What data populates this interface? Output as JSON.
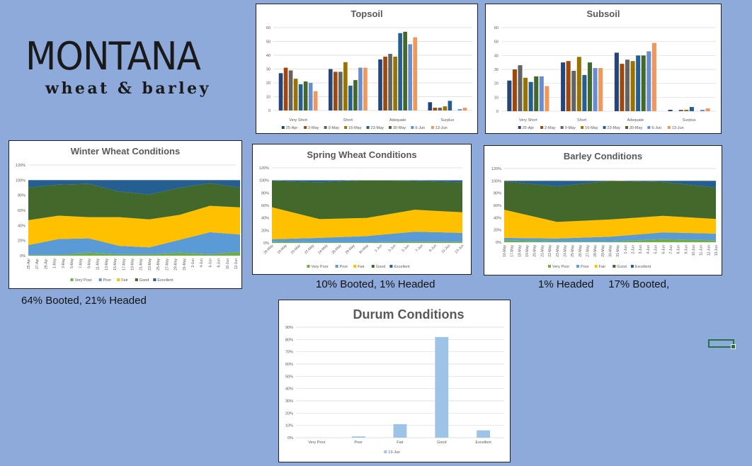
{
  "logo": {
    "main": "MONTANA",
    "sub": "wheat & barley"
  },
  "notes": {
    "winter_wheat": "64% Booted, 21% Headed",
    "spring_wheat": "10% Booted, 1% Headed",
    "barley": "1% Headed     17% Booted,"
  },
  "colors": {
    "background": "#8eaadb",
    "weeks": [
      "#264478",
      "#9e480e",
      "#636363",
      "#997300",
      "#255e91",
      "#43682b",
      "#698ed0",
      "#f1975a"
    ],
    "conditions": [
      "#70ad47",
      "#5b9bd5",
      "#ffc000",
      "#43682b",
      "#255e91"
    ],
    "durum": "#9dc3e6"
  },
  "chart_data": [
    {
      "id": "topsoil",
      "type": "bar",
      "title": "Topsoil",
      "categories": [
        "Very Short",
        "Short",
        "Adequate",
        "Surplus"
      ],
      "ylim": [
        0,
        60
      ],
      "y_ticks": [
        "0",
        "10",
        "20",
        "30",
        "40",
        "50",
        "60"
      ],
      "grid": true,
      "legend": "bottom",
      "series": [
        {
          "name": "25-Apr",
          "values": [
            27,
            30,
            37,
            6
          ]
        },
        {
          "name": "2-May",
          "values": [
            31,
            28,
            39,
            2
          ]
        },
        {
          "name": "9-May",
          "values": [
            29,
            28,
            41,
            2
          ]
        },
        {
          "name": "16-May",
          "values": [
            23,
            35,
            39,
            3
          ]
        },
        {
          "name": "23-May",
          "values": [
            19,
            18,
            56,
            7
          ]
        },
        {
          "name": "30-May",
          "values": [
            21,
            22,
            57,
            0
          ]
        },
        {
          "name": "6-Jun",
          "values": [
            20,
            31,
            48,
            1
          ]
        },
        {
          "name": "13-Jun",
          "values": [
            14,
            31,
            53,
            2
          ]
        }
      ]
    },
    {
      "id": "subsoil",
      "type": "bar",
      "title": "Subsoil",
      "categories": [
        "Very Short",
        "Short",
        "Adequate",
        "Surplus"
      ],
      "ylim": [
        0,
        60
      ],
      "y_ticks": [
        "0",
        "10",
        "20",
        "30",
        "40",
        "50",
        "60"
      ],
      "grid": true,
      "legend": "bottom",
      "series": [
        {
          "name": "25-Apr",
          "values": [
            22,
            35,
            42,
            1
          ]
        },
        {
          "name": "2-May",
          "values": [
            30,
            36,
            34,
            0
          ]
        },
        {
          "name": "9-May",
          "values": [
            33,
            29,
            37,
            1
          ]
        },
        {
          "name": "16-May",
          "values": [
            24,
            39,
            36,
            1
          ]
        },
        {
          "name": "23-May",
          "values": [
            21,
            26,
            40,
            3
          ]
        },
        {
          "name": "30-May",
          "values": [
            25,
            35,
            40,
            0
          ]
        },
        {
          "name": "6-Jun",
          "values": [
            25,
            31,
            43,
            1
          ]
        },
        {
          "name": "13-Jun",
          "values": [
            18,
            31,
            49,
            2
          ]
        }
      ]
    },
    {
      "id": "winter",
      "type": "area",
      "stacked": true,
      "title": "Winter Wheat Conditions",
      "ylim": [
        0,
        120
      ],
      "y_ticks": [
        "0%",
        "20%",
        "40%",
        "60%",
        "80%",
        "100%",
        "120%"
      ],
      "grid": true,
      "legend": "bottom",
      "x": [
        "25-Apr",
        "2-May",
        "9-May",
        "16-May",
        "23-May",
        "30-May",
        "6-Jun",
        "13-Jun"
      ],
      "x_ticks": [
        "25-Apr",
        "27-Apr",
        "29-Apr",
        "1-May",
        "3-May",
        "5-May",
        "7-May",
        "9-May",
        "11-May",
        "13-May",
        "15-May",
        "17-May",
        "19-May",
        "21-May",
        "23-May",
        "25-May",
        "27-May",
        "29-May",
        "31-May",
        "2-Jun",
        "4-Jun",
        "6-Jun",
        "8-Jun",
        "10-Jun",
        "12-Jun"
      ],
      "series": [
        {
          "name": "Very Poor",
          "values": [
            1,
            1,
            4,
            2,
            2,
            4,
            2,
            5
          ]
        },
        {
          "name": "Poor",
          "values": [
            13,
            21,
            19,
            11,
            9,
            17,
            29,
            23
          ]
        },
        {
          "name": "Fair",
          "values": [
            33,
            31,
            28,
            38,
            37,
            33,
            35,
            36
          ]
        },
        {
          "name": "Good",
          "values": [
            43,
            41,
            44,
            34,
            33,
            36,
            30,
            26
          ]
        },
        {
          "name": "Excellent",
          "values": [
            10,
            6,
            5,
            15,
            19,
            10,
            4,
            10
          ]
        }
      ]
    },
    {
      "id": "spring",
      "type": "area",
      "stacked": true,
      "title": "Spring Wheat Conditions",
      "ylim": [
        0,
        120
      ],
      "y_ticks": [
        "0%",
        "20%",
        "40%",
        "60%",
        "80%",
        "100%",
        "120%"
      ],
      "grid": true,
      "legend": "bottom",
      "x": [
        "16-May",
        "23-May",
        "30-May",
        "6-Jun",
        "13-Jun"
      ],
      "x_ticks": [
        "16-May",
        "18-May",
        "20-May",
        "22-May",
        "24-May",
        "26-May",
        "28-May",
        "30-May",
        "1-Jun",
        "3-Jun",
        "5-Jun",
        "7-Jun",
        "9-Jun",
        "11-Jun",
        "13-Jun"
      ],
      "series": [
        {
          "name": "Very Poor",
          "values": [
            2,
            1,
            1,
            2,
            2
          ]
        },
        {
          "name": "Poor",
          "values": [
            4,
            7,
            10,
            16,
            14
          ]
        },
        {
          "name": "Fair",
          "values": [
            51,
            30,
            29,
            35,
            33
          ]
        },
        {
          "name": "Good",
          "values": [
            42,
            59,
            60,
            46,
            48
          ]
        },
        {
          "name": "Excellent",
          "values": [
            1,
            3,
            0,
            1,
            3
          ]
        }
      ]
    },
    {
      "id": "barley",
      "type": "area",
      "stacked": true,
      "title": "Barley Conditions",
      "ylim": [
        0,
        120
      ],
      "y_ticks": [
        "0%",
        "20%",
        "40%",
        "60%",
        "80%",
        "100%",
        "120%"
      ],
      "grid": true,
      "legend": "bottom",
      "x": [
        "16-May",
        "23-May",
        "30-May",
        "6-Jun",
        "13-Jun"
      ],
      "x_ticks": [
        "16-May",
        "17-May",
        "18-May",
        "19-May",
        "20-May",
        "21-May",
        "22-May",
        "23-May",
        "24-May",
        "25-May",
        "26-May",
        "27-May",
        "28-May",
        "29-May",
        "30-May",
        "31-May",
        "1-Jun",
        "2-Jun",
        "3-Jun",
        "4-Jun",
        "5-Jun",
        "6-Jun",
        "7-Jun",
        "8-Jun",
        "9-Jun",
        "10-Jun",
        "11-Jun",
        "12-Jun",
        "13-Jun"
      ],
      "series": [
        {
          "name": "Very Poor",
          "values": [
            3,
            1,
            1,
            5,
            3
          ]
        },
        {
          "name": "Poor",
          "values": [
            4,
            5,
            8,
            11,
            11
          ]
        },
        {
          "name": "Fair",
          "values": [
            46,
            27,
            28,
            27,
            24
          ]
        },
        {
          "name": "Good",
          "values": [
            46,
            58,
            63,
            55,
            51
          ]
        },
        {
          "name": "Excellent",
          "values": [
            1,
            9,
            0,
            2,
            11
          ]
        }
      ]
    },
    {
      "id": "durum",
      "type": "bar",
      "title": "Durum Conditions",
      "categories": [
        "Very Poor",
        "Poor",
        "Fair",
        "Good",
        "Excellent"
      ],
      "ylim": [
        0,
        90
      ],
      "y_ticks": [
        "0%",
        "10%",
        "20%",
        "30%",
        "40%",
        "50%",
        "60%",
        "70%",
        "80%",
        "90%"
      ],
      "grid": true,
      "legend": "bottom",
      "series": [
        {
          "name": "13-Jun",
          "values": [
            0,
            1,
            11,
            82,
            6
          ]
        }
      ]
    }
  ]
}
